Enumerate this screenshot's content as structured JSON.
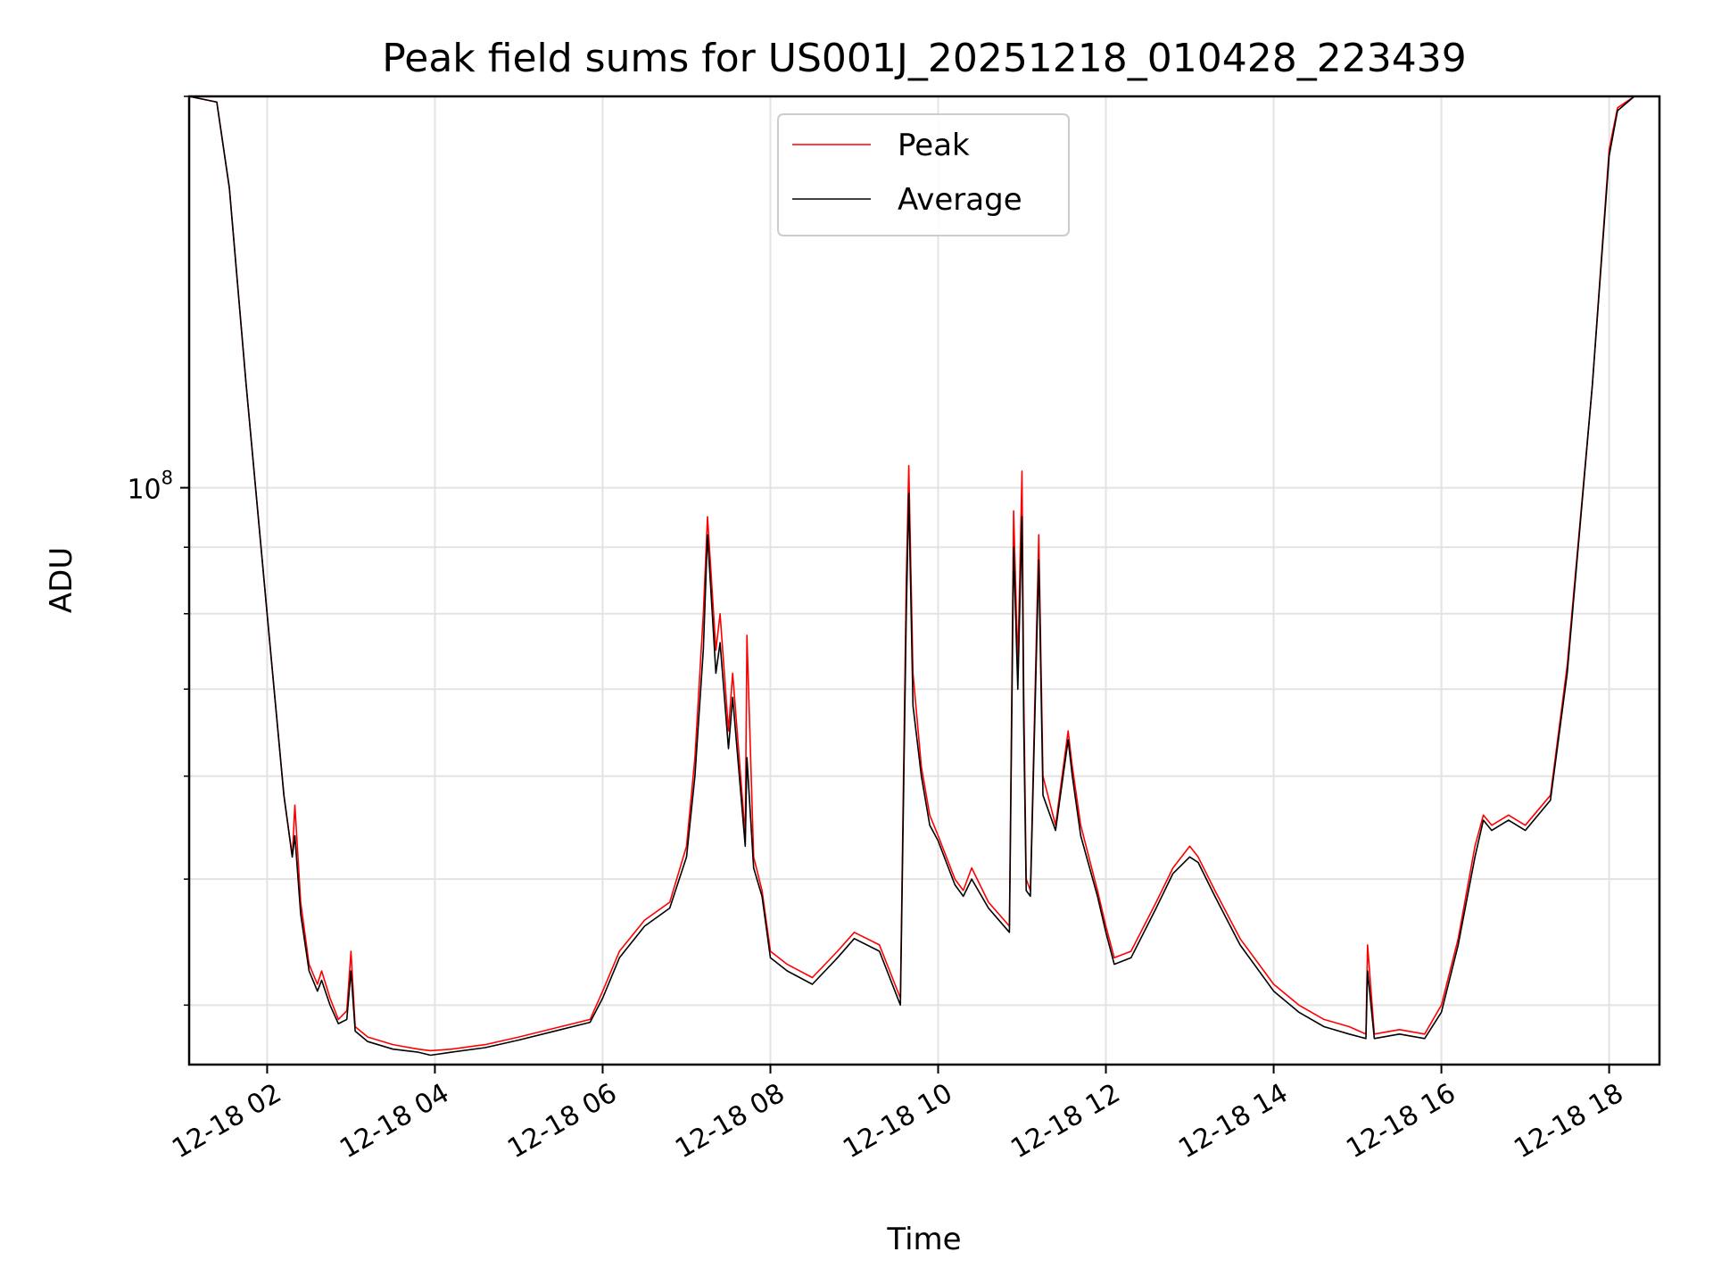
{
  "chart_data": {
    "type": "line",
    "title": "Peak field sums for US001J_20251218_010428_223439",
    "xlabel": "Time",
    "ylabel": "ADU",
    "yscale": "log",
    "grid": true,
    "legend_position": "top-center",
    "x_unit": "hours since 2025-12-18 00:00",
    "xlim": [
      1.07,
      18.6
    ],
    "ylim": [
      36000000,
      200000000
    ],
    "xticks": [
      {
        "value": 2,
        "label": "12-18 02"
      },
      {
        "value": 4,
        "label": "12-18 04"
      },
      {
        "value": 6,
        "label": "12-18 06"
      },
      {
        "value": 8,
        "label": "12-18 08"
      },
      {
        "value": 10,
        "label": "12-18 10"
      },
      {
        "value": 12,
        "label": "12-18 12"
      },
      {
        "value": 14,
        "label": "12-18 14"
      },
      {
        "value": 16,
        "label": "12-18 16"
      },
      {
        "value": 18,
        "label": "12-18 18"
      }
    ],
    "yticks_major": [
      {
        "value": 100000000,
        "base": "10",
        "exponent": "8"
      }
    ],
    "yticks_minor": [
      40000000,
      50000000,
      60000000,
      70000000,
      80000000,
      90000000,
      200000000
    ],
    "series": [
      {
        "name": "Peak",
        "color": "#ff0000",
        "x": [
          1.07,
          1.4,
          1.55,
          1.75,
          2.0,
          2.2,
          2.3,
          2.33,
          2.4,
          2.5,
          2.6,
          2.65,
          2.75,
          2.85,
          2.95,
          3.0,
          3.05,
          3.2,
          3.5,
          3.8,
          3.95,
          4.2,
          4.6,
          5.0,
          5.5,
          5.85,
          6.0,
          6.2,
          6.5,
          6.8,
          7.0,
          7.1,
          7.2,
          7.25,
          7.35,
          7.4,
          7.5,
          7.55,
          7.7,
          7.72,
          7.8,
          7.9,
          8.0,
          8.2,
          8.5,
          8.8,
          9.0,
          9.3,
          9.55,
          9.62,
          9.65,
          9.7,
          9.8,
          9.9,
          10.0,
          10.2,
          10.3,
          10.4,
          10.6,
          10.85,
          10.9,
          10.95,
          11.0,
          11.02,
          11.05,
          11.1,
          11.2,
          11.25,
          11.4,
          11.55,
          11.6,
          11.7,
          11.9,
          12.0,
          12.1,
          12.3,
          12.6,
          12.8,
          13.0,
          13.1,
          13.3,
          13.6,
          14.0,
          14.3,
          14.6,
          14.9,
          15.1,
          15.12,
          15.2,
          15.5,
          15.8,
          16.0,
          16.2,
          16.4,
          16.5,
          16.6,
          16.8,
          17.0,
          17.3,
          17.5,
          17.8,
          18.0,
          18.1,
          18.3,
          18.6
        ],
        "y": [
          200000000,
          198000000,
          170000000,
          120000000,
          80000000,
          58000000,
          52000000,
          57000000,
          48000000,
          43000000,
          41500000,
          42500000,
          40500000,
          39000000,
          39600000,
          44000000,
          38500000,
          37800000,
          37300000,
          37000000,
          36900000,
          37000000,
          37300000,
          37800000,
          38500000,
          39000000,
          41000000,
          44000000,
          46500000,
          48000000,
          53000000,
          62000000,
          80000000,
          95000000,
          75000000,
          80000000,
          65000000,
          72000000,
          54000000,
          77000000,
          52000000,
          49000000,
          44000000,
          43000000,
          42000000,
          44000000,
          45500000,
          44500000,
          40500000,
          85000000,
          104000000,
          72000000,
          61000000,
          56000000,
          54000000,
          50000000,
          49000000,
          51000000,
          48000000,
          46000000,
          96000000,
          73000000,
          103000000,
          70000000,
          50000000,
          49000000,
          92000000,
          60000000,
          55000000,
          65000000,
          61000000,
          55000000,
          49000000,
          46000000,
          43500000,
          44000000,
          48000000,
          51000000,
          53000000,
          52000000,
          49000000,
          45000000,
          41500000,
          40000000,
          39000000,
          38500000,
          38000000,
          44500000,
          38000000,
          38300000,
          38000000,
          40000000,
          45000000,
          53000000,
          56000000,
          55000000,
          56000000,
          55000000,
          58000000,
          73000000,
          120000000,
          182000000,
          196000000,
          200000000,
          200000000
        ]
      },
      {
        "name": "Average",
        "color": "#000000",
        "x": [
          1.07,
          1.4,
          1.55,
          1.75,
          2.0,
          2.2,
          2.3,
          2.33,
          2.4,
          2.5,
          2.6,
          2.65,
          2.75,
          2.85,
          2.95,
          3.0,
          3.05,
          3.2,
          3.5,
          3.8,
          3.95,
          4.2,
          4.6,
          5.0,
          5.5,
          5.85,
          6.0,
          6.2,
          6.5,
          6.8,
          7.0,
          7.1,
          7.2,
          7.25,
          7.35,
          7.4,
          7.5,
          7.55,
          7.7,
          7.72,
          7.8,
          7.9,
          8.0,
          8.2,
          8.5,
          8.8,
          9.0,
          9.3,
          9.55,
          9.62,
          9.65,
          9.7,
          9.8,
          9.9,
          10.0,
          10.2,
          10.3,
          10.4,
          10.6,
          10.85,
          10.9,
          10.95,
          11.0,
          11.02,
          11.05,
          11.1,
          11.2,
          11.25,
          11.4,
          11.55,
          11.6,
          11.7,
          11.9,
          12.0,
          12.1,
          12.3,
          12.6,
          12.8,
          13.0,
          13.1,
          13.3,
          13.6,
          14.0,
          14.3,
          14.6,
          14.9,
          15.1,
          15.12,
          15.2,
          15.5,
          15.8,
          16.0,
          16.2,
          16.4,
          16.5,
          16.6,
          16.8,
          17.0,
          17.3,
          17.5,
          17.8,
          18.0,
          18.1,
          18.3,
          18.6
        ],
        "y": [
          200000000,
          198000000,
          170000000,
          120000000,
          80000000,
          58000000,
          52000000,
          54000000,
          47000000,
          42500000,
          41000000,
          41800000,
          40000000,
          38700000,
          39000000,
          42500000,
          38200000,
          37500000,
          37000000,
          36800000,
          36600000,
          36800000,
          37100000,
          37600000,
          38300000,
          38800000,
          40500000,
          43500000,
          46000000,
          47500000,
          52000000,
          60000000,
          75000000,
          92000000,
          72000000,
          76000000,
          63000000,
          69000000,
          53000000,
          62000000,
          51000000,
          48500000,
          43500000,
          42500000,
          41500000,
          43500000,
          45000000,
          44000000,
          40000000,
          80000000,
          99000000,
          68000000,
          60000000,
          55000000,
          53500000,
          49500000,
          48500000,
          50000000,
          47500000,
          45500000,
          90000000,
          70000000,
          95000000,
          66000000,
          49000000,
          48500000,
          88000000,
          58000000,
          54500000,
          64000000,
          60000000,
          54000000,
          48500000,
          45500000,
          43000000,
          43500000,
          47500000,
          50500000,
          52000000,
          51500000,
          48500000,
          44500000,
          41000000,
          39500000,
          38500000,
          38000000,
          37700000,
          42500000,
          37700000,
          38000000,
          37700000,
          39500000,
          44500000,
          52000000,
          55500000,
          54500000,
          55500000,
          54500000,
          57500000,
          72000000,
          120000000,
          180000000,
          195000000,
          200000000,
          200000000
        ]
      }
    ]
  }
}
